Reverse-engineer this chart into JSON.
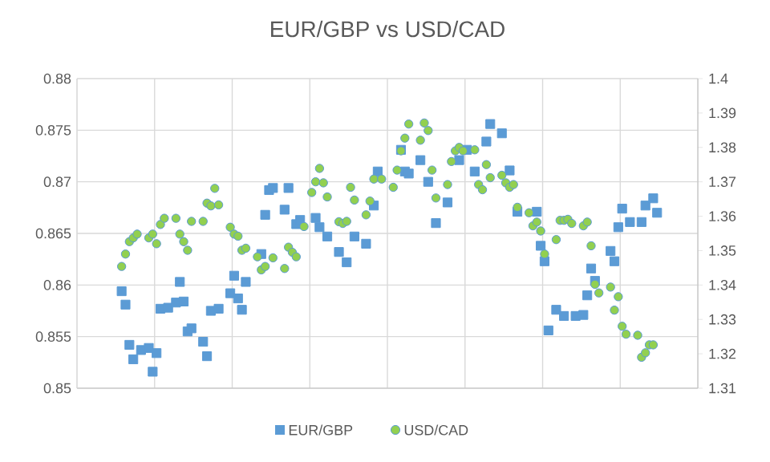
{
  "chart_data": {
    "type": "scatter",
    "title": "EUR/GBP vs USD/CAD",
    "categories": [
      null,
      null,
      null,
      null,
      null,
      null,
      null,
      null,
      null,
      null,
      null,
      null,
      null,
      null,
      null,
      null,
      null,
      null,
      null,
      null,
      null,
      null,
      null,
      null,
      null,
      null,
      null,
      null,
      null,
      null,
      null,
      null,
      null,
      null,
      null,
      null,
      null,
      null,
      null,
      null,
      null,
      null,
      null,
      null,
      null,
      null,
      null,
      null,
      null,
      null,
      null,
      null,
      null,
      null,
      null,
      null,
      null,
      null,
      null,
      null,
      null,
      null,
      null,
      null,
      null,
      null,
      null,
      null,
      null,
      null,
      null,
      null,
      null,
      null,
      null,
      null,
      null,
      null,
      null,
      null,
      null,
      null,
      null,
      null,
      null,
      null,
      null,
      null,
      null,
      null,
      null,
      null,
      null,
      null,
      null,
      null,
      null,
      null,
      null,
      null,
      null,
      null,
      null,
      null,
      null,
      null,
      null,
      null,
      null,
      null,
      null,
      null,
      null,
      null,
      null,
      null,
      null,
      null,
      null,
      null,
      null,
      null,
      null,
      null,
      null,
      null,
      null,
      null,
      null,
      null,
      null,
      null,
      null,
      null,
      null,
      null,
      null,
      null,
      null,
      null,
      null,
      null,
      null,
      null,
      null,
      null,
      null,
      null,
      null,
      null,
      null,
      null,
      null,
      null,
      null,
      null,
      null,
      null,
      null,
      null
    ],
    "ylim": [
      0.85,
      0.88
    ],
    "yticks": [
      0.85,
      0.855,
      0.86,
      0.865,
      0.87,
      0.875,
      0.88
    ],
    "y2lim": [
      1.31,
      1.4
    ],
    "y2ticks": [
      1.31,
      1.32,
      1.33,
      1.34,
      1.35,
      1.36,
      1.37,
      1.38,
      1.39,
      1.4
    ],
    "grid": true,
    "legend": "bottom",
    "series": [
      {
        "name": "EUR/GBP",
        "color": "#5b9bd5",
        "marker": "square",
        "values": [
          null,
          null,
          null,
          null,
          null,
          null,
          null,
          null,
          null,
          null,
          null,
          0.8594,
          0.8581,
          0.8542,
          0.8528,
          null,
          0.8537,
          null,
          0.8539,
          0.8516,
          0.8534,
          0.8577,
          null,
          0.8578,
          null,
          0.8583,
          0.8603,
          0.8584,
          0.8555,
          0.8558,
          null,
          null,
          0.8545,
          0.8531,
          0.8575,
          null,
          0.8577,
          null,
          null,
          0.8592,
          0.8609,
          0.8587,
          0.8576,
          0.8603,
          null,
          null,
          null,
          0.863,
          0.8668,
          0.8692,
          0.8694,
          null,
          null,
          0.8673,
          0.8694,
          null,
          0.8659,
          0.8663,
          null,
          null,
          null,
          0.8665,
          0.8656,
          null,
          0.8647,
          null,
          null,
          0.8632,
          null,
          0.8622,
          null,
          0.8647,
          null,
          null,
          0.864,
          null,
          0.8677,
          0.871,
          null,
          null,
          null,
          null,
          null,
          0.8731,
          0.871,
          0.8708,
          null,
          null,
          0.8721,
          null,
          0.87,
          null,
          0.866,
          null,
          null,
          0.868,
          null,
          null,
          0.8721,
          null,
          0.8731,
          null,
          0.871,
          null,
          null,
          0.8739,
          0.8756,
          null,
          null,
          0.8747,
          null,
          0.8711,
          null,
          0.8671,
          null,
          null,
          null,
          null,
          0.8671,
          0.8638,
          0.8623,
          0.8556,
          null,
          0.8576,
          null,
          0.857,
          null,
          null,
          0.857,
          null,
          0.8571,
          0.859,
          0.8616,
          0.8604,
          null,
          null,
          null,
          0.8633,
          0.8623,
          0.8656,
          0.8674,
          null,
          0.8661,
          null,
          null,
          0.8661,
          0.8677,
          null,
          0.8684,
          0.867,
          null,
          null,
          null,
          null,
          null,
          null,
          null,
          null,
          null,
          null
        ]
      },
      {
        "name": "USD/CAD",
        "color": "#92d050",
        "marker": "circle",
        "axis": "y2",
        "values": [
          null,
          null,
          null,
          null,
          null,
          null,
          null,
          null,
          null,
          null,
          null,
          1.3454,
          1.349,
          1.3526,
          1.3537,
          1.3548,
          null,
          null,
          1.3537,
          1.3548,
          1.352,
          1.3576,
          1.3594,
          null,
          null,
          1.3594,
          1.3548,
          1.3526,
          1.3501,
          1.3585,
          null,
          null,
          1.3585,
          1.3638,
          1.363,
          1.3681,
          1.3633,
          null,
          null,
          1.3568,
          1.3548,
          1.3542,
          1.3501,
          1.3507,
          null,
          null,
          1.3482,
          1.3444,
          1.3454,
          null,
          1.3479,
          null,
          null,
          1.3448,
          1.351,
          1.3495,
          1.3482,
          null,
          1.357,
          null,
          1.3669,
          1.37,
          1.3739,
          1.3697,
          1.3656,
          null,
          null,
          1.3584,
          1.3579,
          1.3585,
          1.3684,
          1.3647,
          null,
          null,
          1.3604,
          1.3644,
          1.3708,
          null,
          1.3708,
          null,
          null,
          1.3684,
          1.3734,
          1.379,
          1.3827,
          1.3868,
          null,
          null,
          1.3821,
          1.3871,
          1.3849,
          1.3734,
          1.3653,
          null,
          null,
          1.3692,
          1.3759,
          1.379,
          1.38,
          1.379,
          null,
          null,
          1.3793,
          1.3692,
          1.3677,
          1.375,
          1.3712,
          null,
          null,
          1.3719,
          1.3697,
          1.3684,
          1.3692,
          1.3626,
          null,
          null,
          1.361,
          1.3572,
          1.3583,
          1.3557,
          1.349,
          null,
          null,
          1.3532,
          1.3588,
          1.3588,
          1.3591,
          1.3579,
          null,
          null,
          1.3572,
          1.3583,
          1.3514,
          1.3402,
          1.3377,
          null,
          null,
          1.3394,
          1.3327,
          1.3366,
          1.328,
          1.3257,
          null,
          null,
          1.3254,
          1.319,
          1.3203,
          1.3226,
          1.3226,
          null,
          null,
          null,
          null,
          null,
          null,
          null,
          null,
          null,
          null,
          null
        ]
      }
    ]
  }
}
